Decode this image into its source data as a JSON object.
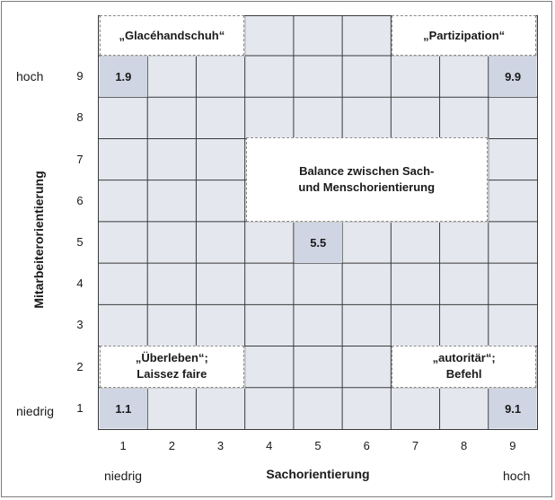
{
  "grid": {
    "cols": 9,
    "rows": 9,
    "x_ticks": [
      "1",
      "2",
      "3",
      "4",
      "5",
      "6",
      "7",
      "8",
      "9"
    ],
    "y_ticks": [
      "9",
      "8",
      "7",
      "6",
      "5",
      "4",
      "3",
      "2",
      "1"
    ],
    "highlighted_cells": [
      {
        "label": "1.9",
        "col": 1,
        "row": 9
      },
      {
        "label": "9.9",
        "col": 9,
        "row": 9
      },
      {
        "label": "5.5",
        "col": 5,
        "row": 5
      },
      {
        "label": "1.1",
        "col": 1,
        "row": 1
      },
      {
        "label": "9.1",
        "col": 9,
        "row": 1
      }
    ],
    "callouts": [
      {
        "text": "„Glacéhandschuh“",
        "cols": [
          1,
          3
        ],
        "rows": [
          10,
          10
        ]
      },
      {
        "text": "„Partizipation“",
        "cols": [
          7,
          9
        ],
        "rows": [
          10,
          10
        ]
      },
      {
        "text": "Balance zwischen Sach-\nund Menschorientierung",
        "cols": [
          4,
          8
        ],
        "rows": [
          6,
          7
        ]
      },
      {
        "text": "„Überleben“;\nLaissez faire",
        "cols": [
          1,
          3
        ],
        "rows": [
          2,
          2
        ]
      },
      {
        "text": "„autoritär“;\nBefehl",
        "cols": [
          7,
          9
        ],
        "rows": [
          2,
          2
        ]
      }
    ]
  },
  "x_axis": {
    "title": "Sachorientierung",
    "low": "niedrig",
    "high": "hoch"
  },
  "y_axis": {
    "title": "Mitarbeiterorientierung",
    "low": "niedrig",
    "high": "hoch"
  },
  "colors": {
    "grid_bg": "#e4e7ee",
    "highlight": "#cfd5e3",
    "line": "#3a3a3a"
  }
}
